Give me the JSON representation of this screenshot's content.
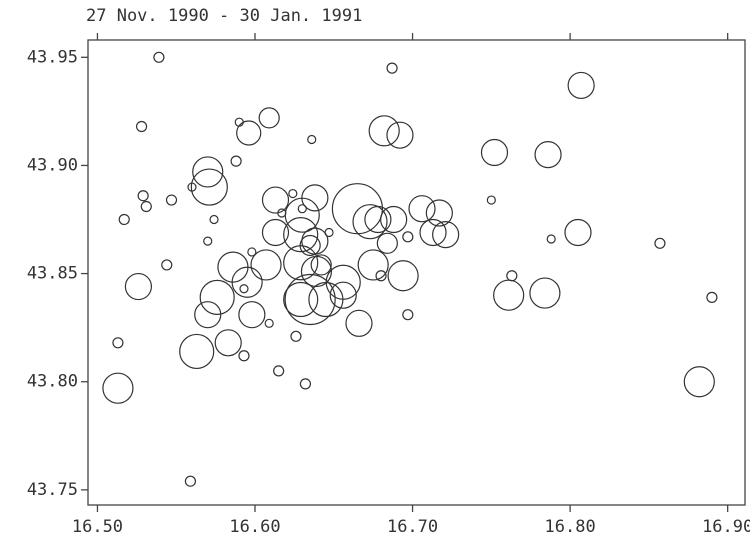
{
  "chart_data": {
    "type": "scatter",
    "title": "27 Nov. 1990 - 30 Jan. 1991",
    "x": [
      16.513,
      16.539,
      16.528,
      16.687,
      16.807,
      16.609,
      16.596,
      16.59,
      16.636,
      16.682,
      16.692,
      16.752,
      16.786,
      16.75,
      16.588,
      16.57,
      16.571,
      16.56,
      16.529,
      16.531,
      16.547,
      16.517,
      16.574,
      16.57,
      16.544,
      16.526,
      16.613,
      16.624,
      16.638,
      16.617,
      16.63,
      16.63,
      16.613,
      16.629,
      16.638,
      16.635,
      16.647,
      16.665,
      16.673,
      16.678,
      16.688,
      16.684,
      16.697,
      16.706,
      16.717,
      16.713,
      16.721,
      16.788,
      16.805,
      16.857,
      16.598,
      16.586,
      16.595,
      16.607,
      16.629,
      16.639,
      16.642,
      16.656,
      16.629,
      16.635,
      16.645,
      16.656,
      16.675,
      16.68,
      16.694,
      16.576,
      16.593,
      16.57,
      16.598,
      16.609,
      16.666,
      16.697,
      16.626,
      16.563,
      16.583,
      16.593,
      16.615,
      16.632,
      16.513,
      16.763,
      16.761,
      16.784,
      16.882,
      16.89,
      16.559
    ],
    "values": [
      43.797,
      43.95,
      43.918,
      43.945,
      43.937,
      43.922,
      43.915,
      43.92,
      43.912,
      43.916,
      43.914,
      43.906,
      43.905,
      43.884,
      43.902,
      43.897,
      43.89,
      43.89,
      43.886,
      43.881,
      43.884,
      43.875,
      43.875,
      43.865,
      43.854,
      43.844,
      43.884,
      43.887,
      43.885,
      43.878,
      43.88,
      43.877,
      43.869,
      43.868,
      43.865,
      43.863,
      43.869,
      43.88,
      43.874,
      43.875,
      43.875,
      43.864,
      43.867,
      43.88,
      43.878,
      43.869,
      43.868,
      43.866,
      43.869,
      43.864,
      43.86,
      43.853,
      43.846,
      43.854,
      43.855,
      43.851,
      43.854,
      43.846,
      43.838,
      43.838,
      43.838,
      43.84,
      43.854,
      43.849,
      43.849,
      43.839,
      43.843,
      43.831,
      43.831,
      43.827,
      43.827,
      43.831,
      43.821,
      43.814,
      43.818,
      43.812,
      43.805,
      43.799,
      43.818,
      43.849,
      43.84,
      43.841,
      43.8,
      43.839,
      43.754
    ],
    "sizes": [
      15,
      5,
      5,
      5,
      13,
      10,
      12,
      4,
      4,
      15,
      13,
      13,
      13,
      4,
      5,
      15,
      18,
      4,
      5,
      5,
      5,
      5,
      4,
      4,
      5,
      13,
      13,
      4,
      13,
      4,
      4,
      17,
      13,
      17,
      13,
      10,
      4,
      25,
      17,
      13,
      13,
      10,
      5,
      13,
      13,
      13,
      13,
      4,
      13,
      5,
      4,
      15,
      15,
      15,
      17,
      15,
      10,
      17,
      17,
      25,
      17,
      13,
      15,
      5,
      15,
      17,
      4,
      13,
      13,
      4,
      13,
      5,
      5,
      17,
      13,
      5,
      5,
      5,
      5,
      5,
      15,
      15,
      15,
      5,
      5
    ],
    "color": "#333333",
    "xlim": [
      16.494,
      16.911
    ],
    "ylim": [
      43.743,
      43.958
    ],
    "xticks": [
      {
        "value": 16.5,
        "label": "16.50"
      },
      {
        "value": 16.6,
        "label": "16.60"
      },
      {
        "value": 16.7,
        "label": "16.70"
      },
      {
        "value": 16.8,
        "label": "16.80"
      },
      {
        "value": 16.9,
        "label": "16.90"
      }
    ],
    "yticks": [
      {
        "value": 43.75,
        "label": "43.75"
      },
      {
        "value": 43.8,
        "label": "43.80"
      },
      {
        "value": 43.85,
        "label": "43.85"
      },
      {
        "value": 43.9,
        "label": "43.90"
      },
      {
        "value": 43.95,
        "label": "43.95"
      }
    ]
  }
}
